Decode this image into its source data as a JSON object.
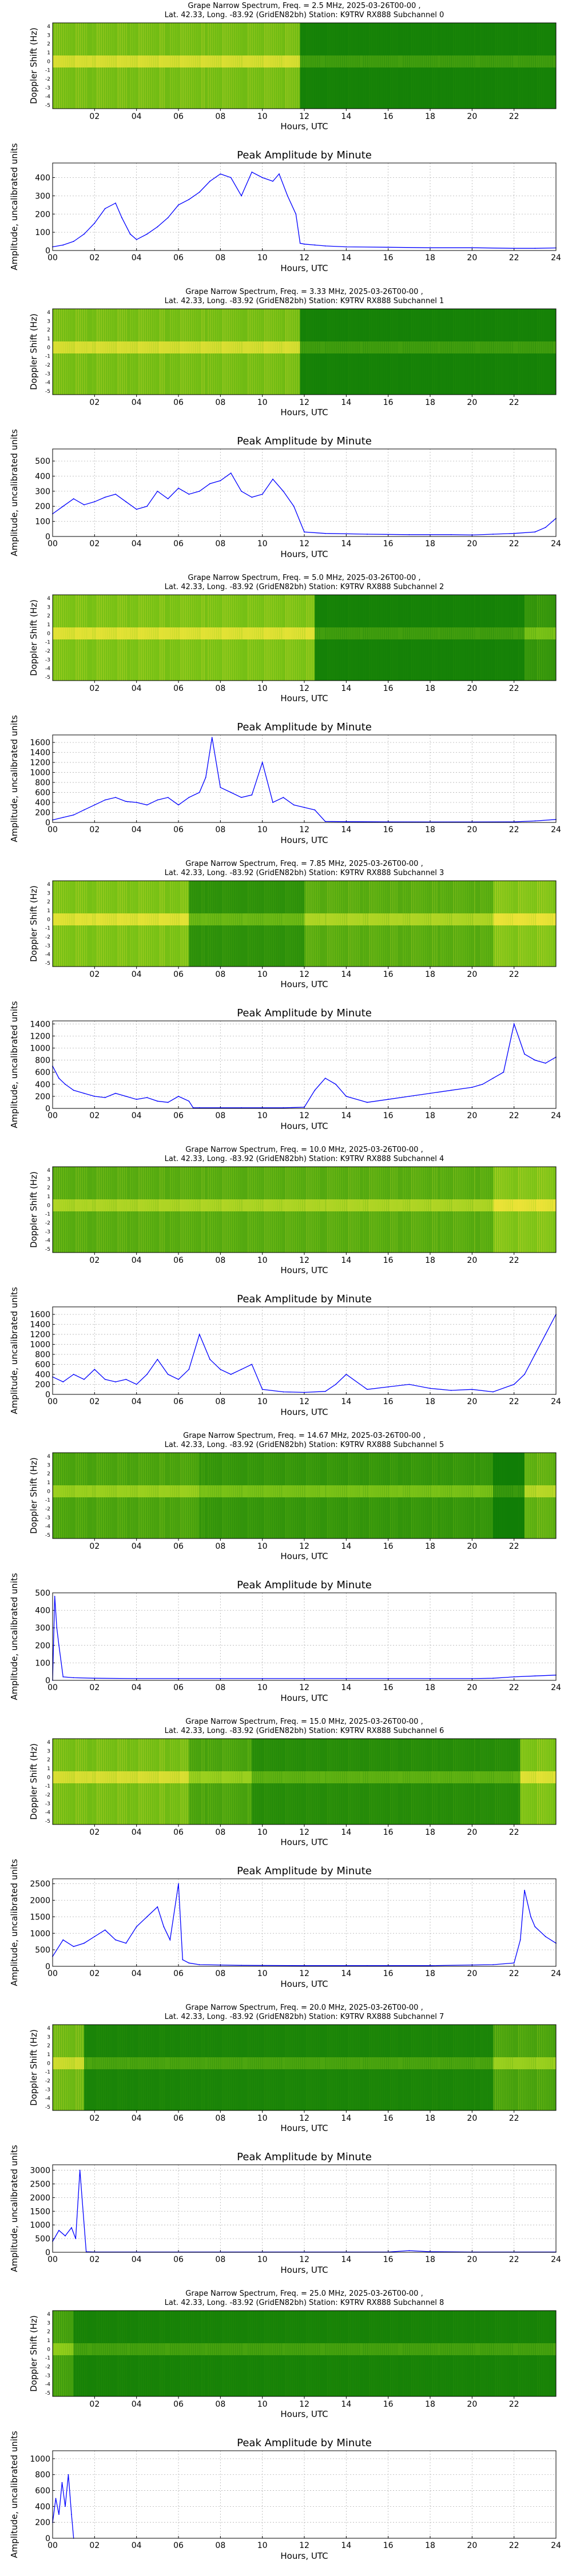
{
  "axis_common": {
    "x_ticks_spec": [
      "02",
      "04",
      "06",
      "08",
      "10",
      "12",
      "14",
      "16",
      "18",
      "20",
      "22"
    ],
    "x_ticks_amp": [
      "00",
      "02",
      "04",
      "06",
      "08",
      "10",
      "12",
      "14",
      "16",
      "18",
      "20",
      "22",
      "24"
    ],
    "xlabel": "Hours, UTC",
    "ylabel_spec": "Doppler Shift (Hz)",
    "ylabel_amp": "Amplitude, uncalibrated units",
    "amp_title": "Peak Amplitude by Minute",
    "spec_y_ticks": [
      "4",
      "3",
      "2",
      "1",
      "0",
      "-1",
      "-2",
      "-3",
      "-4",
      "-5"
    ]
  },
  "colors": {
    "line": "#0000ff",
    "spec_low": "#0a7a06",
    "spec_mid": "#8fcf1a",
    "spec_high": "#f5e63a",
    "grid": "#b0b0b0"
  },
  "channels": [
    {
      "title1": "Grape Narrow Spectrum, Freq. = 2.5 MHz, 2025-03-26T00-00 ,",
      "title2": "Lat.  42.33, Long. -83.92 (GridEN82bh) Station: K9TRV RX888 Subchannel 0",
      "yticks": [
        "0",
        "100",
        "200",
        "300",
        "400"
      ],
      "ymax": 480
    },
    {
      "title1": "Grape Narrow Spectrum, Freq. = 3.33 MHz, 2025-03-26T00-00 ,",
      "title2": "Lat.  42.33, Long. -83.92 (GridEN82bh) Station: K9TRV RX888 Subchannel 1",
      "yticks": [
        "0",
        "100",
        "200",
        "300",
        "400",
        "500"
      ],
      "ymax": 580
    },
    {
      "title1": "Grape Narrow Spectrum, Freq. = 5.0 MHz, 2025-03-26T00-00 ,",
      "title2": "Lat.  42.33, Long. -83.92 (GridEN82bh) Station: K9TRV RX888 Subchannel 2",
      "yticks": [
        "0",
        "200",
        "400",
        "600",
        "800",
        "1000",
        "1200",
        "1400",
        "1600"
      ],
      "ymax": 1750
    },
    {
      "title1": "Grape Narrow Spectrum, Freq. = 7.85 MHz, 2025-03-26T00-00 ,",
      "title2": "Lat.  42.33, Long. -83.92 (GridEN82bh) Station: K9TRV RX888 Subchannel 3",
      "yticks": [
        "0",
        "200",
        "400",
        "600",
        "800",
        "1000",
        "1200",
        "1400"
      ],
      "ymax": 1450
    },
    {
      "title1": "Grape Narrow Spectrum, Freq. = 10.0 MHz, 2025-03-26T00-00 ,",
      "title2": "Lat.  42.33, Long. -83.92 (GridEN82bh) Station: K9TRV RX888 Subchannel 4",
      "yticks": [
        "0",
        "200",
        "400",
        "600",
        "800",
        "1000",
        "1200",
        "1400",
        "1600"
      ],
      "ymax": 1750
    },
    {
      "title1": "Grape Narrow Spectrum, Freq. = 14.67 MHz, 2025-03-26T00-00 ,",
      "title2": "Lat.  42.33, Long. -83.92 (GridEN82bh) Station: K9TRV RX888 Subchannel 5",
      "yticks": [
        "0",
        "100",
        "200",
        "300",
        "400",
        "500"
      ],
      "ymax": 500
    },
    {
      "title1": "Grape Narrow Spectrum, Freq. = 15.0 MHz, 2025-03-26T00-00 ,",
      "title2": "Lat.  42.33, Long. -83.92 (GridEN82bh) Station: K9TRV RX888 Subchannel 6",
      "yticks": [
        "0",
        "500",
        "1000",
        "1500",
        "2000",
        "2500"
      ],
      "ymax": 2650
    },
    {
      "title1": "Grape Narrow Spectrum, Freq. = 20.0 MHz, 2025-03-26T00-00 ,",
      "title2": "Lat.  42.33, Long. -83.92 (GridEN82bh) Station: K9TRV RX888 Subchannel 7",
      "yticks": [
        "0",
        "500",
        "1000",
        "1500",
        "2000",
        "2500",
        "3000"
      ],
      "ymax": 3200
    },
    {
      "title1": "Grape Narrow Spectrum, Freq. = 25.0 MHz, 2025-03-26T00-00 ,",
      "title2": "Lat.  42.33, Long. -83.92 (GridEN82bh) Station: K9TRV RX888 Subchannel 8",
      "yticks": [
        "0",
        "200",
        "400",
        "600",
        "800",
        "1000"
      ],
      "ymax": 1100
    }
  ],
  "chart_data": [
    {
      "type": "heatmap",
      "title": "Grape Narrow Spectrum, Freq. = 2.5 MHz, 2025-03-26T00-00 ,",
      "xlabel": "Hours, UTC",
      "ylabel": "Doppler Shift (Hz)",
      "xlim": [
        0,
        24
      ],
      "ylim": [
        -5,
        5
      ],
      "bands": [
        {
          "x": [
            0,
            11.8
          ],
          "level": 0.75
        },
        {
          "x": [
            11.8,
            24
          ],
          "level": 0.08
        }
      ]
    },
    {
      "type": "line",
      "title": "Peak Amplitude by Minute",
      "xlabel": "Hours, UTC",
      "ylabel": "Amplitude, uncalibrated units",
      "xlim": [
        0,
        24
      ],
      "ylim": [
        0,
        480
      ],
      "x": [
        0,
        0.5,
        1,
        1.5,
        2,
        2.5,
        3,
        3.3,
        3.7,
        4,
        4.5,
        5,
        5.5,
        6,
        6.5,
        7,
        7.5,
        8,
        8.5,
        9,
        9.5,
        10,
        10.5,
        10.8,
        11.2,
        11.6,
        11.8,
        12,
        12.5,
        13,
        14,
        16,
        18,
        20,
        22,
        23,
        24
      ],
      "y": [
        20,
        30,
        50,
        90,
        150,
        230,
        260,
        180,
        90,
        60,
        90,
        130,
        180,
        250,
        280,
        320,
        380,
        420,
        400,
        300,
        430,
        400,
        380,
        420,
        300,
        200,
        40,
        35,
        30,
        25,
        20,
        18,
        15,
        15,
        12,
        12,
        14
      ]
    },
    {
      "type": "heatmap",
      "title": "Grape Narrow Spectrum, Freq. = 3.33 MHz, 2025-03-26T00-00 ,",
      "xlabel": "Hours, UTC",
      "ylabel": "Doppler Shift (Hz)",
      "xlim": [
        0,
        24
      ],
      "ylim": [
        -5,
        5
      ],
      "bands": [
        {
          "x": [
            0,
            11.8
          ],
          "level": 0.75
        },
        {
          "x": [
            11.8,
            24
          ],
          "level": 0.08
        }
      ]
    },
    {
      "type": "line",
      "title": "Peak Amplitude by Minute",
      "xlabel": "Hours, UTC",
      "ylabel": "Amplitude, uncalibrated units",
      "xlim": [
        0,
        24
      ],
      "ylim": [
        0,
        580
      ],
      "x": [
        0,
        0.5,
        1,
        1.5,
        2,
        2.5,
        3,
        3.5,
        4,
        4.5,
        5,
        5.5,
        6,
        6.5,
        7,
        7.5,
        8,
        8.5,
        9,
        9.5,
        10,
        10.5,
        11,
        11.5,
        12,
        13,
        15,
        17,
        19,
        20,
        21,
        22,
        23,
        23.5,
        24
      ],
      "y": [
        150,
        200,
        250,
        210,
        230,
        260,
        280,
        230,
        180,
        200,
        300,
        250,
        320,
        280,
        300,
        350,
        370,
        420,
        300,
        260,
        280,
        380,
        300,
        200,
        30,
        20,
        15,
        12,
        12,
        10,
        15,
        20,
        30,
        60,
        120
      ]
    },
    {
      "type": "heatmap",
      "title": "Grape Narrow Spectrum, Freq. = 5.0 MHz, 2025-03-26T00-00 ,",
      "xlabel": "Hours, UTC",
      "ylabel": "Doppler Shift (Hz)",
      "xlim": [
        0,
        24
      ],
      "ylim": [
        -5,
        5
      ],
      "bands": [
        {
          "x": [
            0,
            12.5
          ],
          "level": 0.8
        },
        {
          "x": [
            12.5,
            22.5
          ],
          "level": 0.08
        },
        {
          "x": [
            22.5,
            24
          ],
          "level": 0.3
        }
      ]
    },
    {
      "type": "line",
      "title": "Peak Amplitude by Minute",
      "xlabel": "Hours, UTC",
      "ylabel": "Amplitude, uncalibrated units",
      "xlim": [
        0,
        24
      ],
      "ylim": [
        0,
        1750
      ],
      "x": [
        0,
        0.5,
        1,
        1.5,
        2,
        2.5,
        3,
        3.5,
        4,
        4.5,
        5,
        5.5,
        6,
        6.5,
        7,
        7.3,
        7.6,
        8,
        8.5,
        9,
        9.5,
        10,
        10.5,
        11,
        11.5,
        12,
        12.5,
        13,
        14,
        16,
        18,
        20,
        22,
        23,
        24
      ],
      "y": [
        50,
        100,
        150,
        250,
        350,
        450,
        500,
        420,
        400,
        350,
        450,
        500,
        350,
        500,
        600,
        900,
        1700,
        700,
        600,
        500,
        550,
        1200,
        400,
        500,
        350,
        300,
        250,
        20,
        15,
        12,
        10,
        10,
        12,
        30,
        60
      ]
    },
    {
      "type": "heatmap",
      "title": "Grape Narrow Spectrum, Freq. = 7.85 MHz, 2025-03-26T00-00 ,",
      "xlabel": "Hours, UTC",
      "ylabel": "Doppler Shift (Hz)",
      "xlim": [
        0,
        24
      ],
      "ylim": [
        -5,
        5
      ],
      "bands": [
        {
          "x": [
            0,
            6.5
          ],
          "level": 0.8
        },
        {
          "x": [
            6.5,
            12
          ],
          "level": 0.25
        },
        {
          "x": [
            12,
            21
          ],
          "level": 0.55
        },
        {
          "x": [
            21,
            24
          ],
          "level": 0.85
        }
      ]
    },
    {
      "type": "line",
      "title": "Peak Amplitude by Minute",
      "xlabel": "Hours, UTC",
      "ylabel": "Amplitude, uncalibrated units",
      "xlim": [
        0,
        24
      ],
      "ylim": [
        0,
        1450
      ],
      "x": [
        0,
        0.3,
        0.6,
        1,
        1.5,
        2,
        2.5,
        3,
        3.5,
        4,
        4.5,
        5,
        5.5,
        6,
        6.5,
        6.7,
        7,
        9,
        11,
        12,
        12.5,
        13,
        13.5,
        14,
        15,
        16,
        17,
        18,
        19,
        20,
        20.5,
        21,
        21.5,
        22,
        22.5,
        23,
        23.5,
        24
      ],
      "y": [
        700,
        500,
        400,
        300,
        250,
        200,
        180,
        250,
        200,
        150,
        180,
        120,
        100,
        200,
        120,
        10,
        10,
        10,
        10,
        20,
        300,
        500,
        400,
        200,
        100,
        150,
        200,
        250,
        300,
        350,
        400,
        500,
        600,
        1400,
        900,
        800,
        750,
        850
      ]
    },
    {
      "type": "heatmap",
      "title": "Grape Narrow Spectrum, Freq. = 10.0 MHz, 2025-03-26T00-00 ,",
      "xlabel": "Hours, UTC",
      "ylabel": "Doppler Shift (Hz)",
      "xlim": [
        0,
        24
      ],
      "ylim": [
        -5,
        5
      ],
      "bands": [
        {
          "x": [
            0,
            21
          ],
          "level": 0.55
        },
        {
          "x": [
            21,
            24
          ],
          "level": 0.85
        }
      ]
    },
    {
      "type": "line",
      "title": "Peak Amplitude by Minute",
      "xlabel": "Hours, UTC",
      "ylabel": "Amplitude, uncalibrated units",
      "xlim": [
        0,
        24
      ],
      "ylim": [
        0,
        1750
      ],
      "x": [
        0,
        0.5,
        1,
        1.5,
        2,
        2.5,
        3,
        3.5,
        4,
        4.5,
        5,
        5.5,
        6,
        6.5,
        7,
        7.5,
        8,
        8.5,
        9,
        9.5,
        10,
        11,
        12,
        13,
        13.5,
        14,
        15,
        16,
        17,
        18,
        19,
        20,
        21,
        22,
        22.5,
        23,
        23.5,
        24
      ],
      "y": [
        350,
        250,
        400,
        300,
        500,
        300,
        250,
        300,
        200,
        400,
        700,
        400,
        300,
        500,
        1200,
        700,
        500,
        400,
        500,
        600,
        100,
        50,
        40,
        60,
        200,
        400,
        100,
        150,
        200,
        120,
        80,
        100,
        50,
        200,
        400,
        800,
        1200,
        1600
      ]
    },
    {
      "type": "heatmap",
      "title": "Grape Narrow Spectrum, Freq. = 14.67 MHz, 2025-03-26T00-00 ,",
      "xlabel": "Hours, UTC",
      "ylabel": "Doppler Shift (Hz)",
      "xlim": [
        0,
        24
      ],
      "ylim": [
        -5,
        5
      ],
      "bands": [
        {
          "x": [
            0,
            7
          ],
          "level": 0.45
        },
        {
          "x": [
            7,
            21
          ],
          "level": 0.3
        },
        {
          "x": [
            21,
            22.5
          ],
          "level": 0.05
        },
        {
          "x": [
            22.5,
            24
          ],
          "level": 0.6
        }
      ]
    },
    {
      "type": "line",
      "title": "Peak Amplitude by Minute",
      "xlabel": "Hours, UTC",
      "ylabel": "Amplitude, uncalibrated units",
      "xlim": [
        0,
        24
      ],
      "ylim": [
        0,
        500
      ],
      "x": [
        0,
        0.1,
        0.2,
        0.3,
        0.5,
        1,
        2,
        4,
        6,
        8,
        10,
        12,
        14,
        16,
        18,
        20,
        21,
        22,
        23,
        24
      ],
      "y": [
        0,
        480,
        300,
        200,
        20,
        15,
        12,
        10,
        10,
        10,
        10,
        10,
        10,
        10,
        10,
        10,
        12,
        20,
        25,
        30
      ]
    },
    {
      "type": "heatmap",
      "title": "Grape Narrow Spectrum, Freq. = 15.0 MHz, 2025-03-26T00-00 ,",
      "xlabel": "Hours, UTC",
      "ylabel": "Doppler Shift (Hz)",
      "xlim": [
        0,
        24
      ],
      "ylim": [
        -5,
        5
      ],
      "bands": [
        {
          "x": [
            0,
            6.5
          ],
          "level": 0.75
        },
        {
          "x": [
            6.5,
            9.5
          ],
          "level": 0.45
        },
        {
          "x": [
            9.5,
            22.3
          ],
          "level": 0.2
        },
        {
          "x": [
            22.3,
            24
          ],
          "level": 0.8
        }
      ]
    },
    {
      "type": "line",
      "title": "Peak Amplitude by Minute",
      "xlabel": "Hours, UTC",
      "ylabel": "Amplitude, uncalibrated units",
      "xlim": [
        0,
        24
      ],
      "ylim": [
        0,
        2650
      ],
      "x": [
        0,
        0.5,
        1,
        1.5,
        2,
        2.5,
        3,
        3.5,
        4,
        4.5,
        5,
        5.3,
        5.6,
        6,
        6.2,
        6.5,
        7,
        9,
        12,
        15,
        18,
        21,
        22,
        22.3,
        22.5,
        22.8,
        23,
        23.5,
        24
      ],
      "y": [
        300,
        800,
        600,
        700,
        900,
        1100,
        800,
        700,
        1200,
        1500,
        1800,
        1200,
        800,
        2500,
        200,
        100,
        50,
        30,
        20,
        20,
        20,
        50,
        100,
        800,
        2300,
        1500,
        1200,
        900,
        700
      ]
    },
    {
      "type": "heatmap",
      "title": "Grape Narrow Spectrum, Freq. = 20.0 MHz, 2025-03-26T00-00 ,",
      "xlabel": "Hours, UTC",
      "ylabel": "Doppler Shift (Hz)",
      "xlim": [
        0,
        24
      ],
      "ylim": [
        -5,
        5
      ],
      "bands": [
        {
          "x": [
            0,
            1.5
          ],
          "level": 0.7
        },
        {
          "x": [
            1.5,
            21
          ],
          "level": 0.12
        },
        {
          "x": [
            21,
            24
          ],
          "level": 0.45
        }
      ]
    },
    {
      "type": "line",
      "title": "Peak Amplitude by Minute",
      "xlabel": "Hours, UTC",
      "ylabel": "Amplitude, uncalibrated units",
      "xlim": [
        0,
        24
      ],
      "ylim": [
        0,
        3200
      ],
      "x": [
        0,
        0.3,
        0.6,
        0.9,
        1.1,
        1.3,
        1.6,
        2,
        4,
        8,
        12,
        16,
        17,
        18,
        20,
        24
      ],
      "y": [
        400,
        800,
        600,
        900,
        500,
        3000,
        20,
        10,
        10,
        10,
        10,
        10,
        60,
        20,
        10,
        10
      ]
    },
    {
      "type": "heatmap",
      "title": "Grape Narrow Spectrum, Freq. = 25.0 MHz, 2025-03-26T00-00 ,",
      "xlabel": "Hours, UTC",
      "ylabel": "Doppler Shift (Hz)",
      "xlim": [
        0,
        24
      ],
      "ylim": [
        -5,
        5
      ],
      "bands": [
        {
          "x": [
            0,
            1
          ],
          "level": 0.4
        },
        {
          "x": [
            1,
            24
          ],
          "level": 0.1
        }
      ]
    },
    {
      "type": "line",
      "title": "Peak Amplitude by Minute",
      "xlabel": "Hours, UTC",
      "ylabel": "Amplitude, uncalibrated units",
      "xlim": [
        0,
        24
      ],
      "ylim": [
        0,
        1100
      ],
      "x": [
        0,
        0.15,
        0.3,
        0.45,
        0.6,
        0.75,
        0.9,
        1.0
      ],
      "y": [
        200,
        500,
        300,
        700,
        400,
        800,
        300,
        0
      ]
    }
  ]
}
